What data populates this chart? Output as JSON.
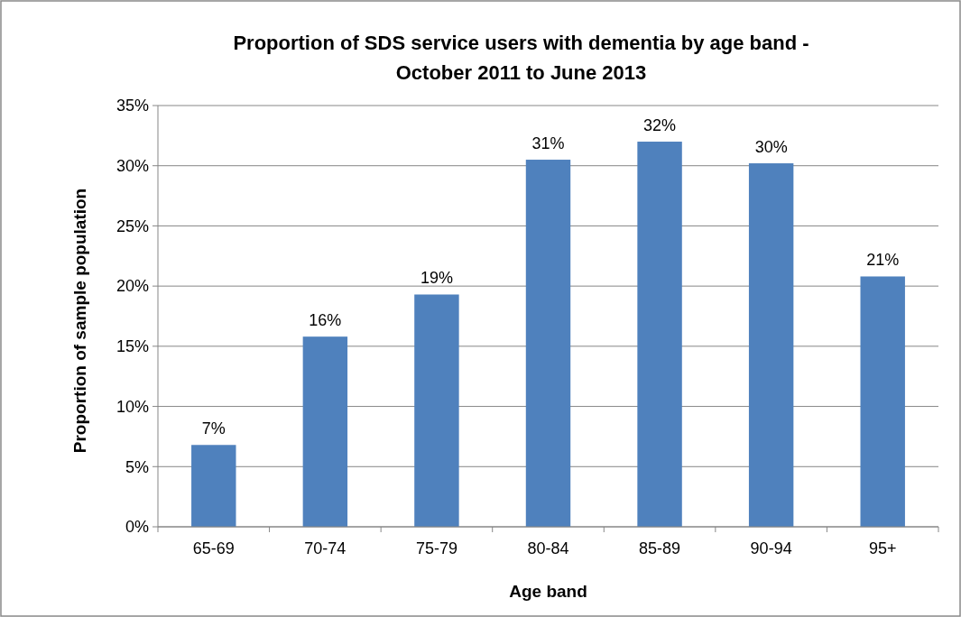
{
  "chart_data": {
    "type": "bar",
    "title": "Proportion of SDS service users with dementia by age band -\nOctober 2011 to June 2013",
    "xlabel": "Age band",
    "ylabel": "Proportion of sample population",
    "categories": [
      "65-69",
      "70-74",
      "75-79",
      "80-84",
      "85-89",
      "90-94",
      "95+"
    ],
    "values": [
      6.8,
      15.8,
      19.3,
      30.5,
      32.0,
      30.2,
      20.8
    ],
    "value_labels": [
      "7%",
      "16%",
      "19%",
      "31%",
      "32%",
      "30%",
      "21%"
    ],
    "color": "#4f81bd",
    "ylim": [
      0,
      35
    ],
    "yticks": [
      {
        "value": 0,
        "label": "0%"
      },
      {
        "value": 5,
        "label": "5%"
      },
      {
        "value": 10,
        "label": "10%"
      },
      {
        "value": 15,
        "label": "15%"
      },
      {
        "value": 20,
        "label": "20%"
      },
      {
        "value": 25,
        "label": "25%"
      },
      {
        "value": 30,
        "label": "30%"
      },
      {
        "value": 35,
        "label": "35%"
      }
    ],
    "grid": "y"
  }
}
